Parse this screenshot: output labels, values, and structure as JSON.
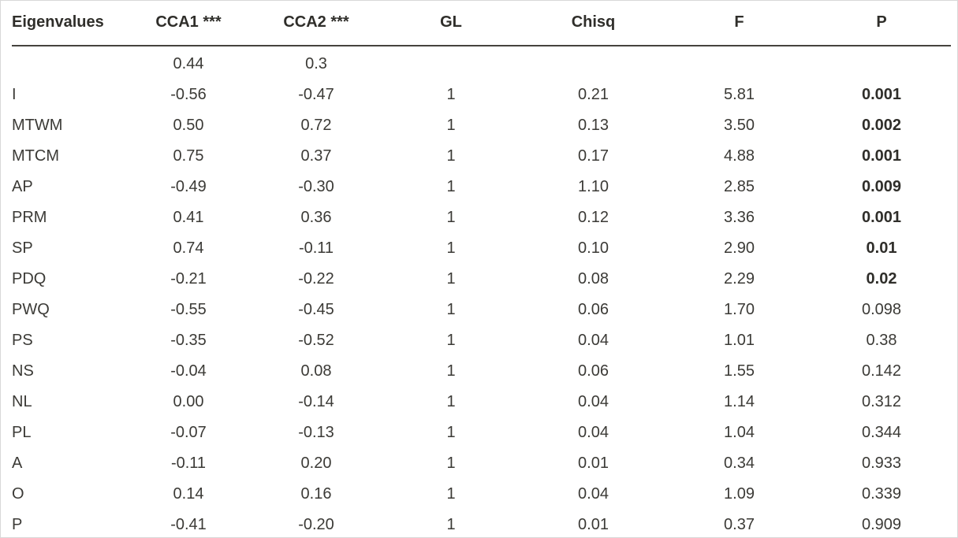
{
  "table": {
    "headers": [
      "Eigenvalues",
      "CCA1 ***",
      "CCA2 ***",
      "GL",
      "Chisq",
      "F",
      "P"
    ],
    "rows": [
      {
        "cells": [
          "",
          "0.44",
          "0.3",
          "",
          "",
          "",
          ""
        ],
        "p_bold": false
      },
      {
        "cells": [
          "I",
          "-0.56",
          "-0.47",
          "1",
          "0.21",
          "5.81",
          "0.001"
        ],
        "p_bold": true
      },
      {
        "cells": [
          "MTWM",
          "0.50",
          "0.72",
          "1",
          "0.13",
          "3.50",
          "0.002"
        ],
        "p_bold": true
      },
      {
        "cells": [
          "MTCM",
          "0.75",
          "0.37",
          "1",
          "0.17",
          "4.88",
          "0.001"
        ],
        "p_bold": true
      },
      {
        "cells": [
          "AP",
          "-0.49",
          "-0.30",
          "1",
          "1.10",
          "2.85",
          "0.009"
        ],
        "p_bold": true
      },
      {
        "cells": [
          "PRM",
          "0.41",
          "0.36",
          "1",
          "0.12",
          "3.36",
          "0.001"
        ],
        "p_bold": true
      },
      {
        "cells": [
          "SP",
          "0.74",
          "-0.11",
          "1",
          "0.10",
          "2.90",
          "0.01"
        ],
        "p_bold": true
      },
      {
        "cells": [
          "PDQ",
          "-0.21",
          "-0.22",
          "1",
          "0.08",
          "2.29",
          "0.02"
        ],
        "p_bold": true
      },
      {
        "cells": [
          "PWQ",
          "-0.55",
          "-0.45",
          "1",
          "0.06",
          "1.70",
          "0.098"
        ],
        "p_bold": false
      },
      {
        "cells": [
          "PS",
          "-0.35",
          "-0.52",
          "1",
          "0.04",
          "1.01",
          "0.38"
        ],
        "p_bold": false
      },
      {
        "cells": [
          "NS",
          "-0.04",
          "0.08",
          "1",
          "0.06",
          "1.55",
          "0.142"
        ],
        "p_bold": false
      },
      {
        "cells": [
          "NL",
          "0.00",
          "-0.14",
          "1",
          "0.04",
          "1.14",
          "0.312"
        ],
        "p_bold": false
      },
      {
        "cells": [
          "PL",
          "-0.07",
          "-0.13",
          "1",
          "0.04",
          "1.04",
          "0.344"
        ],
        "p_bold": false
      },
      {
        "cells": [
          "A",
          "-0.11",
          "0.20",
          "1",
          "0.01",
          "0.34",
          "0.933"
        ],
        "p_bold": false
      },
      {
        "cells": [
          "O",
          "0.14",
          "0.16",
          "1",
          "0.04",
          "1.09",
          "0.339"
        ],
        "p_bold": false
      },
      {
        "cells": [
          "P",
          "-0.41",
          "-0.20",
          "1",
          "0.01",
          "0.37",
          "0.909"
        ],
        "p_bold": false
      }
    ]
  },
  "colors": {
    "text": "#3b3a36",
    "header_text": "#2f2e2a",
    "header_rule": "#45433e",
    "page_border": "#d8d8d8",
    "background": "#ffffff"
  }
}
